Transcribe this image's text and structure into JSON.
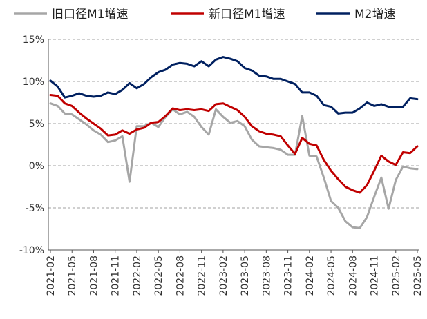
{
  "chart_data": {
    "type": "line",
    "title": "",
    "xlabel": "",
    "ylabel": "",
    "ylim": [
      -10,
      15
    ],
    "yticks": [
      15,
      10,
      5,
      0,
      -5,
      -10
    ],
    "ytick_labels": [
      "15%",
      "10%",
      "5%",
      "0%",
      "-5%",
      "-10%"
    ],
    "grid": "horizontal dashed",
    "legend_position": "top",
    "x_tick_labels": [
      "2021-02",
      "2021-05",
      "2021-08",
      "2021-11",
      "2022-02",
      "2022-05",
      "2022-08",
      "2022-11",
      "2023-02",
      "2023-05",
      "2023-08",
      "2023-11",
      "2024-02",
      "2024-05",
      "2024-08",
      "2024-11",
      "2025-02",
      "2025-05"
    ],
    "x": [
      "2021-02",
      "2021-03",
      "2021-04",
      "2021-05",
      "2021-06",
      "2021-07",
      "2021-08",
      "2021-09",
      "2021-10",
      "2021-11",
      "2021-12",
      "2022-01",
      "2022-02",
      "2022-03",
      "2022-04",
      "2022-05",
      "2022-06",
      "2022-07",
      "2022-08",
      "2022-09",
      "2022-10",
      "2022-11",
      "2022-12",
      "2023-01",
      "2023-02",
      "2023-03",
      "2023-04",
      "2023-05",
      "2023-06",
      "2023-07",
      "2023-08",
      "2023-09",
      "2023-10",
      "2023-11",
      "2023-12",
      "2024-01",
      "2024-02",
      "2024-03",
      "2024-04",
      "2024-05",
      "2024-06",
      "2024-07",
      "2024-08",
      "2024-09",
      "2024-10",
      "2024-11",
      "2024-12",
      "2025-01",
      "2025-02",
      "2025-03",
      "2025-04",
      "2025-05"
    ],
    "series": [
      {
        "name": "旧口径M1增速",
        "color": "#a6a6a6",
        "values": [
          7.4,
          7.1,
          6.2,
          6.1,
          5.5,
          4.9,
          4.2,
          3.7,
          2.8,
          3.0,
          3.5,
          -1.9,
          4.7,
          4.7,
          5.1,
          4.6,
          5.8,
          6.7,
          6.1,
          6.4,
          5.8,
          4.6,
          3.7,
          6.7,
          5.8,
          5.1,
          5.3,
          4.7,
          3.1,
          2.3,
          2.2,
          2.1,
          1.9,
          1.3,
          1.3,
          5.9,
          1.2,
          1.1,
          -1.4,
          -4.2,
          -5.0,
          -6.6,
          -7.3,
          -7.4,
          -6.1,
          -3.7,
          -1.4,
          -5.1,
          -1.7,
          -0.1,
          -0.3,
          -0.4
        ]
      },
      {
        "name": "新口径M1增速",
        "color": "#c00000",
        "values": [
          8.4,
          8.3,
          7.4,
          7.1,
          6.3,
          5.6,
          5.0,
          4.4,
          3.6,
          3.7,
          4.2,
          3.8,
          4.3,
          4.5,
          5.1,
          5.2,
          5.9,
          6.8,
          6.6,
          6.7,
          6.6,
          6.7,
          6.5,
          7.3,
          7.4,
          7.0,
          6.6,
          5.8,
          4.7,
          4.1,
          3.8,
          3.7,
          3.5,
          2.4,
          1.4,
          3.3,
          2.6,
          2.4,
          0.7,
          -0.6,
          -1.6,
          -2.5,
          -2.9,
          -3.2,
          -2.3,
          -0.6,
          1.2,
          0.5,
          0.1,
          1.6,
          1.5,
          2.3
        ]
      },
      {
        "name": "M2增速",
        "color": "#002060",
        "values": [
          10.1,
          9.4,
          8.1,
          8.3,
          8.6,
          8.3,
          8.2,
          8.3,
          8.7,
          8.5,
          9.0,
          9.8,
          9.2,
          9.7,
          10.5,
          11.1,
          11.4,
          12.0,
          12.2,
          12.1,
          11.8,
          12.4,
          11.8,
          12.6,
          12.9,
          12.7,
          12.4,
          11.6,
          11.3,
          10.7,
          10.6,
          10.3,
          10.3,
          10.0,
          9.7,
          8.7,
          8.7,
          8.3,
          7.2,
          7.0,
          6.2,
          6.3,
          6.3,
          6.8,
          7.5,
          7.1,
          7.3,
          7.0,
          7.0,
          7.0,
          8.0,
          7.9
        ]
      }
    ]
  }
}
